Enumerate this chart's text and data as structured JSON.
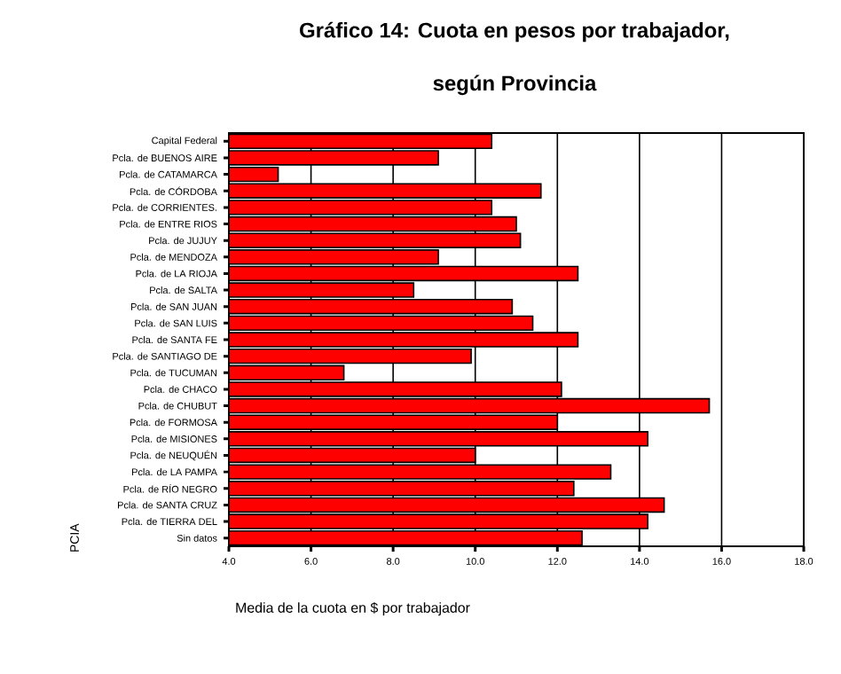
{
  "chart_data": {
    "type": "bar",
    "orientation": "horizontal",
    "title": "Gráfico 14: Cuota en pesos por trabajador,\nsegún Provincia",
    "xlabel": "Media de la cuota en $ por trabajador",
    "ylabel": "PCIA",
    "categories": [
      "Capital Federal",
      "Pcla. de BUENOS AIRE",
      "Pcla. de CATAMARCA",
      "Pcla. de CÓRDOBA",
      "Pcla. de CORRIENTES.",
      "Pcla. de ENTRE RIOS",
      "Pcla. de JUJUY",
      "Pcla. de MENDOZA",
      "Pcla. de LA RIOJA",
      "Pcla. de SALTA",
      "Pcla. de SAN JUAN",
      "Pcla. de SAN LUIS",
      "Pcla. de SANTA FE",
      "Pcla. de SANTIAGO DE",
      "Pcla. de TUCUMAN",
      "Pcla. de CHACO",
      "Pcla. de CHUBUT",
      "Pcla. de FORMOSA",
      "Pcla. de MISIONES",
      "Pcla. de NEUQUÉN",
      "Pcla. de LA PAMPA",
      "Pcla. de RÍO NEGRO",
      "Pcla. de SANTA CRUZ",
      "Pcla. de TIERRA DEL",
      "Sin datos"
    ],
    "values": [
      10.4,
      9.1,
      5.2,
      11.6,
      10.4,
      11.0,
      11.1,
      9.1,
      12.5,
      8.5,
      10.9,
      11.4,
      12.5,
      9.9,
      6.8,
      12.1,
      15.7,
      12.0,
      14.2,
      10.0,
      13.3,
      12.4,
      14.6,
      14.2,
      12.6
    ],
    "color": "#ff0000",
    "xlim": [
      4,
      18
    ],
    "xticks": [
      {
        "value": 4,
        "label": "4.0"
      },
      {
        "value": 6,
        "label": "6.0"
      },
      {
        "value": 8,
        "label": "8.0"
      },
      {
        "value": 10,
        "label": "10.0"
      },
      {
        "value": 12,
        "label": "12.0"
      },
      {
        "value": 14,
        "label": "14.0"
      },
      {
        "value": 16,
        "label": "16.0"
      },
      {
        "value": 18,
        "label": "18.0"
      }
    ],
    "grid": "x"
  }
}
